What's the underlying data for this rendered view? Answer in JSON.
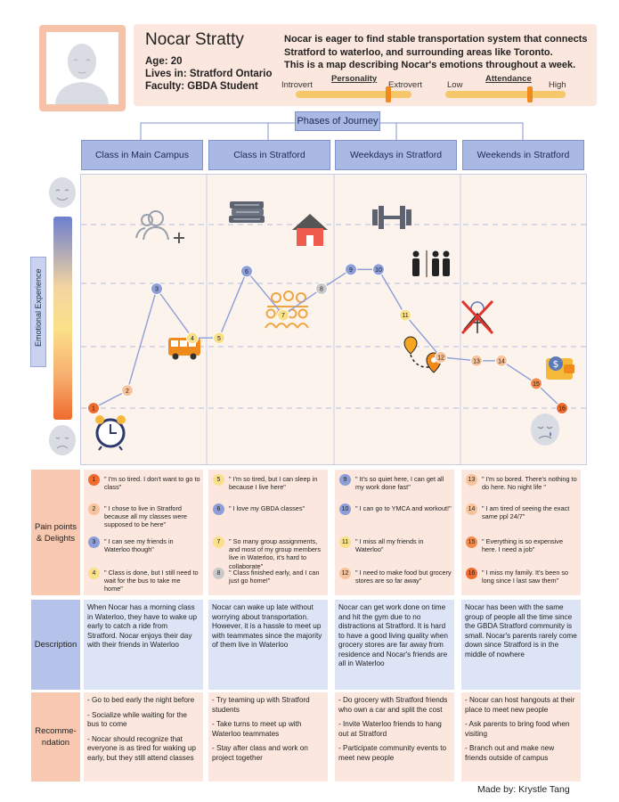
{
  "persona": {
    "name": "Nocar Stratty",
    "age": "Age: 20",
    "lives": "Lives in: Stratford Ontario",
    "faculty": "Faculty: GBDA Student",
    "summary_1": "Nocar is eager to find stable transportation system that connects Stratford to waterloo, and surrounding areas like Toronto.",
    "summary_2": "This is a map describing Nocar's emotions throughout a week.",
    "personality": {
      "title": "Personality",
      "left": "Introvert",
      "right": "Extrovert",
      "level": 0.8
    },
    "attendance": {
      "title": "Attendance",
      "left": "Low",
      "right": "High",
      "level": 0.7
    }
  },
  "phases": {
    "title": "Phases of Journey",
    "items": [
      "Class in Main Campus",
      "Class in Stratford",
      "Weekdays in Stratford",
      "Weekends in Stratford"
    ]
  },
  "emotional_label": "Emotional Experience",
  "colors": {
    "phase_blue": "#a9b9e4",
    "peach": "#fbe7dd",
    "lavender": "#dde4f6",
    "accent_orange": "#f08a1c",
    "node_blue": "#8e9ed8",
    "node_yellow": "#fbe08a",
    "node_peach": "#f8c39a",
    "node_red": "#ef6b2e"
  },
  "journey_points": [
    {
      "label": "1",
      "level": 0.0,
      "tone": "red"
    },
    {
      "label": "2",
      "level": 0.1,
      "tone": "peach"
    },
    {
      "label": "3",
      "level": 0.68,
      "tone": "blue"
    },
    {
      "label": "4",
      "level": 0.4,
      "tone": "yellow"
    },
    {
      "label": "5",
      "level": 0.4,
      "tone": "yellow"
    },
    {
      "label": "6",
      "level": 0.78,
      "tone": "blue"
    },
    {
      "label": "7",
      "level": 0.53,
      "tone": "yellow"
    },
    {
      "label": "8",
      "level": 0.68,
      "tone": "grey"
    },
    {
      "label": "9",
      "level": 0.79,
      "tone": "blue"
    },
    {
      "label": "10",
      "level": 0.79,
      "tone": "blue"
    },
    {
      "label": "11",
      "level": 0.53,
      "tone": "yellow"
    },
    {
      "label": "12",
      "level": 0.29,
      "tone": "peach"
    },
    {
      "label": "13",
      "level": 0.27,
      "tone": "peach"
    },
    {
      "label": "14",
      "level": 0.27,
      "tone": "peach"
    },
    {
      "label": "15",
      "level": 0.14,
      "tone": "orange"
    },
    {
      "label": "16",
      "level": 0.0,
      "tone": "red"
    }
  ],
  "rows": {
    "pain_label": "Pain points & Delights",
    "description_label": "Description",
    "recommendation_label": "Recomme-ndation"
  },
  "pain_points": [
    [
      {
        "n": "1",
        "tone": "red",
        "text": "\" I'm so tired. I don't want to go to class\""
      },
      {
        "n": "2",
        "tone": "peach",
        "text": "\" I chose to live in Stratford because all my classes were supposed to be here\""
      },
      {
        "n": "3",
        "tone": "blue",
        "text": "\" I can see my friends in Waterloo though\""
      },
      {
        "n": "4",
        "tone": "yellow",
        "text": "\" Class is done, but I still need to wait for the bus to take me home\""
      }
    ],
    [
      {
        "n": "5",
        "tone": "yellow",
        "text": "\" I'm so tired, but I can sleep in because I live here\""
      },
      {
        "n": "6",
        "tone": "blue",
        "text": "\" I love my GBDA classes\""
      },
      {
        "n": "7",
        "tone": "yellow",
        "text": "\" So many group assignments, and most of my group members live in Waterloo, it's hard to collaborate\""
      },
      {
        "n": "8",
        "tone": "grey",
        "text": "\" Class finished early, and I can just go home!\""
      }
    ],
    [
      {
        "n": "9",
        "tone": "blue",
        "text": "\" It's so quiet here, I can get all my work done fast\""
      },
      {
        "n": "10",
        "tone": "blue",
        "text": "\" I can go to YMCA and workout!\""
      },
      {
        "n": "11",
        "tone": "yellow",
        "text": "\" I miss all my friends in Waterloo\""
      },
      {
        "n": "12",
        "tone": "peach",
        "text": "\" I need to make food but grocery stores are so far away\""
      }
    ],
    [
      {
        "n": "13",
        "tone": "peach",
        "text": "\" I'm so bored. There's nothing to do here. No night life \""
      },
      {
        "n": "14",
        "tone": "peach",
        "text": "\" I am tired of seeing the exact same ppl 24/7\""
      },
      {
        "n": "15",
        "tone": "orange",
        "text": "\" Everything is so expensive here. I need a job\""
      },
      {
        "n": "16",
        "tone": "red",
        "text": "\" I miss my family. It's been so long since I last saw them\""
      }
    ]
  ],
  "descriptions": [
    "When Nocar has a morning class in Waterloo, they have to wake up early to catch a ride from Stratford. Nocar enjoys their day with their friends in Waterloo",
    "Nocar can wake up late without worrying about transportation. However, it is a hassle to meet up with teammates since the majority of them live in Waterloo",
    "Nocar can get work done on time and hit the gym due to no distractions at Stratford. It is hard to have a good living quality when grocery stores are far away from residence and Nocar's friends are all in Waterloo",
    "Nocar has been with the same group of people all the time since the GBDA Stratford community is small. Nocar's parents rarely come down since Stratford is in the middle of nowhere"
  ],
  "recommendations": [
    [
      "- Go to bed early the night before",
      "- Socialize while waiting for the bus to come",
      "- Nocar should recognize that everyone is as tired for waking up early, but they still attend classes"
    ],
    [
      "- Try teaming up with Stratford students",
      "- Take turns to meet up with Waterloo teammates",
      "- Stay after class and work on project together"
    ],
    [
      "- Do grocery with Stratford friends who own a car and split the cost",
      "- Invite Waterloo friends to hang out at Stratford",
      "- Participate community events to meet new people"
    ],
    [
      "- Nocar can host hangouts at their place to meet new people",
      "- Ask parents to bring food when visiting",
      "- Branch out and make new friends outside of campus"
    ]
  ],
  "footer": "Made by:  Krystle Tang"
}
